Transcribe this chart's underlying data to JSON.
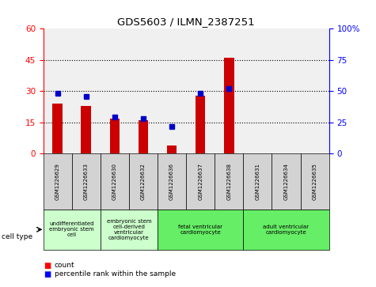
{
  "title": "GDS5603 / ILMN_2387251",
  "samples": [
    "GSM1226629",
    "GSM1226633",
    "GSM1226630",
    "GSM1226632",
    "GSM1226636",
    "GSM1226637",
    "GSM1226638",
    "GSM1226631",
    "GSM1226634",
    "GSM1226635"
  ],
  "counts": [
    24,
    23,
    17,
    16,
    4,
    28,
    46,
    0,
    0,
    0
  ],
  "percentiles": [
    48,
    46,
    29,
    28,
    22,
    48,
    52,
    0,
    0,
    0
  ],
  "ylim_left": [
    0,
    60
  ],
  "ylim_right": [
    0,
    100
  ],
  "yticks_left": [
    0,
    15,
    30,
    45,
    60
  ],
  "yticks_right": [
    0,
    25,
    50,
    75,
    100
  ],
  "ytick_labels_right": [
    "0",
    "25",
    "50",
    "75",
    "100%"
  ],
  "bar_color": "#cc0000",
  "dot_color": "#0000cc",
  "background_color": "#ffffff",
  "sample_box_color": "#d3d3d3",
  "plot_bg_color": "#f0f0f0",
  "cell_type_groups": [
    {
      "label": "undifferentiated\nembryonic stem\ncell",
      "start": 0,
      "end": 2,
      "color": "#ccffcc"
    },
    {
      "label": "embryonic stem\ncell-derived\nventricular\ncardiomyocyte",
      "start": 2,
      "end": 4,
      "color": "#ccffcc"
    },
    {
      "label": "fetal ventricular\ncardiomyocyte",
      "start": 4,
      "end": 7,
      "color": "#66ee66"
    },
    {
      "label": "adult ventricular\ncardiomyocyte",
      "start": 7,
      "end": 10,
      "color": "#66ee66"
    }
  ],
  "legend_count_label": "count",
  "legend_pct_label": "percentile rank within the sample",
  "cell_type_label": "cell type",
  "hgrid_values": [
    15,
    30,
    45
  ]
}
